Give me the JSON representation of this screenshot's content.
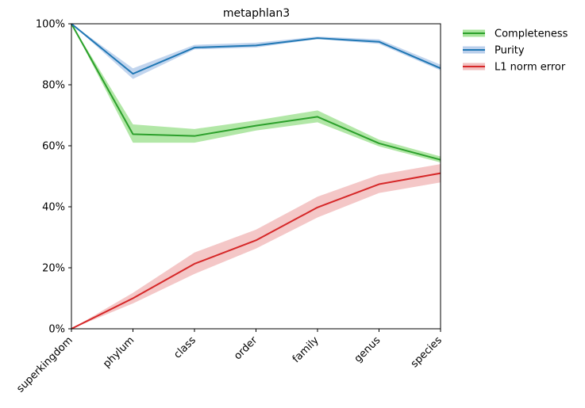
{
  "chart_data": {
    "type": "line",
    "title": "metaphlan3",
    "xlabel": "",
    "ylabel": "",
    "categories": [
      "superkingdom",
      "phylum",
      "class",
      "order",
      "family",
      "genus",
      "species"
    ],
    "ylim": [
      0,
      100
    ],
    "yticks": [
      "0%",
      "20%",
      "40%",
      "60%",
      "80%",
      "100%"
    ],
    "ytick_values": [
      0,
      20,
      40,
      60,
      80,
      100
    ],
    "legend_position": "outside-top-right",
    "grid": false,
    "series": [
      {
        "name": "Completeness",
        "color": "#2ca02c",
        "band_color": "#98df8a",
        "values": [
          100,
          63.8,
          63.2,
          66.6,
          69.5,
          60.8,
          55.4
        ],
        "lower": [
          100,
          61.0,
          61.0,
          65.0,
          67.7,
          59.8,
          54.5
        ],
        "upper": [
          100,
          67.0,
          65.5,
          68.3,
          71.6,
          62.0,
          56.5
        ]
      },
      {
        "name": "Purity",
        "color": "#1f77b4",
        "band_color": "#aec7e8",
        "values": [
          100,
          83.6,
          92.2,
          92.9,
          95.3,
          94.1,
          85.4
        ],
        "lower": [
          100,
          81.9,
          91.6,
          92.2,
          95.0,
          93.4,
          84.7
        ],
        "upper": [
          100,
          85.4,
          93.1,
          93.8,
          95.8,
          94.9,
          86.6
        ]
      },
      {
        "name": "L1 norm error",
        "color": "#d62728",
        "band_color": "#f0b4b4",
        "values": [
          0,
          10.0,
          21.3,
          29.0,
          39.8,
          47.4,
          51.0
        ],
        "lower": [
          0,
          8.3,
          18.0,
          26.3,
          36.5,
          44.5,
          48.0
        ],
        "upper": [
          0,
          11.8,
          25.0,
          32.5,
          43.3,
          50.5,
          54.0
        ]
      }
    ]
  }
}
